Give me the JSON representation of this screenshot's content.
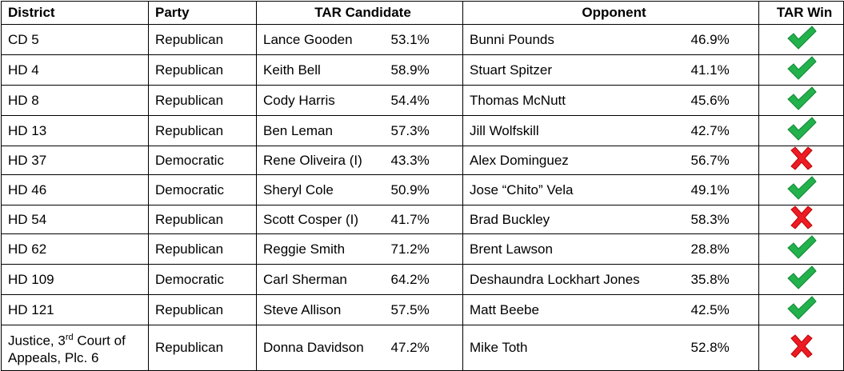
{
  "table": {
    "headers": [
      "District",
      "Party",
      "TAR Candidate",
      "Opponent",
      "TAR Win"
    ],
    "rows": [
      {
        "district": "CD 5",
        "party": "Republican",
        "candidate": "Lance Gooden",
        "candidate_pct": "53.1%",
        "opponent": "Bunni Pounds",
        "opponent_pct": "46.9%",
        "tar_win": true
      },
      {
        "district": "HD 4",
        "party": "Republican",
        "candidate": "Keith Bell",
        "candidate_pct": "58.9%",
        "opponent": "Stuart Spitzer",
        "opponent_pct": "41.1%",
        "tar_win": true
      },
      {
        "district": "HD 8",
        "party": "Republican",
        "candidate": "Cody Harris",
        "candidate_pct": "54.4%",
        "opponent": "Thomas McNutt",
        "opponent_pct": "45.6%",
        "tar_win": true
      },
      {
        "district": "HD 13",
        "party": "Republican",
        "candidate": "Ben Leman",
        "candidate_pct": "57.3%",
        "opponent": "Jill Wolfskill",
        "opponent_pct": "42.7%",
        "tar_win": true
      },
      {
        "district": "HD 37",
        "party": "Democratic",
        "candidate": "Rene Oliveira (I)",
        "candidate_pct": "43.3%",
        "opponent": "Alex Dominguez",
        "opponent_pct": "56.7%",
        "tar_win": false
      },
      {
        "district": "HD 46",
        "party": "Democratic",
        "candidate": "Sheryl Cole",
        "candidate_pct": "50.9%",
        "opponent": "Jose “Chito” Vela",
        "opponent_pct": "49.1%",
        "tar_win": true
      },
      {
        "district": "HD 54",
        "party": "Republican",
        "candidate": "Scott Cosper (I)",
        "candidate_pct": "41.7%",
        "opponent": "Brad Buckley",
        "opponent_pct": "58.3%",
        "tar_win": false
      },
      {
        "district": "HD 62",
        "party": "Republican",
        "candidate": "Reggie Smith",
        "candidate_pct": "71.2%",
        "opponent": "Brent Lawson",
        "opponent_pct": "28.8%",
        "tar_win": true
      },
      {
        "district": "HD 109",
        "party": "Democratic",
        "candidate": "Carl Sherman",
        "candidate_pct": "64.2%",
        "opponent": "Deshaundra Lockhart Jones",
        "opponent_pct": "35.8%",
        "tar_win": true
      },
      {
        "district": "HD 121",
        "party": "Republican",
        "candidate": "Steve Allison",
        "candidate_pct": "57.5%",
        "opponent": "Matt Beebe",
        "opponent_pct": "42.5%",
        "tar_win": true
      },
      {
        "district": [
          "Justice, 3",
          "rd",
          " Court of Appeals, Plc. 6"
        ],
        "party": "Republican",
        "candidate": "Donna Davidson",
        "candidate_pct": "47.2%",
        "opponent": "Mike Toth",
        "opponent_pct": "52.8%",
        "tar_win": false
      }
    ]
  }
}
